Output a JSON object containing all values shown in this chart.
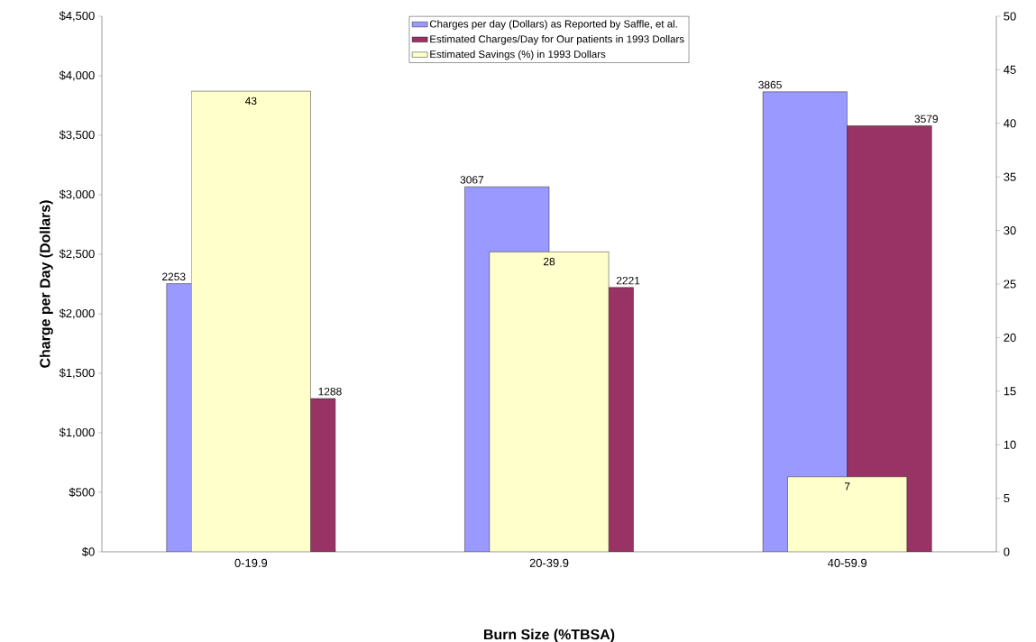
{
  "chart_data": {
    "type": "bar",
    "xlabel": "Burn Size (%TBSA)",
    "ylabel": "Charge per Day (Dollars)",
    "categories": [
      "0-19.9",
      "20-39.9",
      "40-59.9"
    ],
    "series": [
      {
        "name": "Charges per day (Dollars) as Reported by Saffle, et al.",
        "color": "#9999ff",
        "values": [
          2253,
          3067,
          3865
        ]
      },
      {
        "name": "Estimated Charges/Day for Our patients in 1993 Dollars",
        "color": "#993366",
        "values": [
          1288,
          2221,
          3579
        ]
      },
      {
        "name": "Estimated Savings (%) in 1993 Dollars",
        "color": "#ffffcc",
        "values": [
          43,
          28,
          7
        ],
        "axis": "y2"
      }
    ],
    "ylim": [
      0,
      4500
    ],
    "yticks": [
      {
        "value": 0,
        "label": "$0"
      },
      {
        "value": 500,
        "label": "$500"
      },
      {
        "value": 1000,
        "label": "$1,000"
      },
      {
        "value": 1500,
        "label": "$1,500"
      },
      {
        "value": 2000,
        "label": "$2,000"
      },
      {
        "value": 2500,
        "label": "$2,500"
      },
      {
        "value": 3000,
        "label": "$3,000"
      },
      {
        "value": 3500,
        "label": "$3,500"
      },
      {
        "value": 4000,
        "label": "$4,000"
      },
      {
        "value": 4500,
        "label": "$4,500"
      }
    ],
    "y2lim": [
      0,
      50
    ],
    "y2ticks": [
      0,
      5,
      10,
      15,
      20,
      25,
      30,
      35,
      40,
      45,
      50
    ],
    "data_labels": true,
    "legend": "top"
  }
}
